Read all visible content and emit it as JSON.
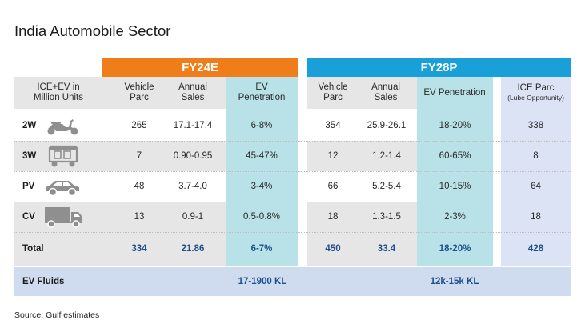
{
  "title": "India Automobile Sector",
  "source": "Source: Gulf estimates",
  "header_label": "ICE+EV in Million Units",
  "groups": {
    "fy24": "FY24E",
    "fy28": "FY28P"
  },
  "columns": {
    "vehicle_parc": "Vehicle Parc",
    "annual_sales": "Annual Sales",
    "ev_penetration": "EV Penetration",
    "ice_parc": "ICE Parc",
    "ice_parc_sub": "(Lube Opportunity)"
  },
  "rows": [
    {
      "label": "2W",
      "icon": "scooter-icon",
      "fy24_parc": "265",
      "fy24_sales": "17.1-17.4",
      "fy24_ev": "6-8%",
      "fy28_parc": "354",
      "fy28_sales": "25.9-26.1",
      "fy28_ev": "18-20%",
      "ice_parc": "338"
    },
    {
      "label": "3W",
      "icon": "auto-rickshaw-icon",
      "fy24_parc": "7",
      "fy24_sales": "0.90-0.95",
      "fy24_ev": "45-47%",
      "fy28_parc": "12",
      "fy28_sales": "1.2-1.4",
      "fy28_ev": "60-65%",
      "ice_parc": "8"
    },
    {
      "label": "PV",
      "icon": "car-icon",
      "fy24_parc": "48",
      "fy24_sales": "3.7-4.0",
      "fy24_ev": "3-4%",
      "fy28_parc": "66",
      "fy28_sales": "5.2-5.4",
      "fy28_ev": "10-15%",
      "ice_parc": "64"
    },
    {
      "label": "CV",
      "icon": "truck-icon",
      "fy24_parc": "13",
      "fy24_sales": "0.9-1",
      "fy24_ev": "0.5-0.8%",
      "fy28_parc": "18",
      "fy28_sales": "1.3-1.5",
      "fy28_ev": "2-3%",
      "ice_parc": "18"
    }
  ],
  "total": {
    "label": "Total",
    "fy24_parc": "334",
    "fy24_sales": "21.86",
    "fy24_ev": "6-7%",
    "fy28_parc": "450",
    "fy28_sales": "33.4",
    "fy28_ev": "18-20%",
    "ice_parc": "428"
  },
  "ev_fluids": {
    "label": "EV Fluids",
    "fy24": "17-1900 KL",
    "fy28": "12k-15k KL"
  },
  "colors": {
    "fy24_header": "#ee7d1a",
    "fy28_header": "#1aa0d8",
    "penetration_fill": "#b8e2e7",
    "ice_fill": "#dbe3f5",
    "total_text": "#1f4e8c"
  }
}
